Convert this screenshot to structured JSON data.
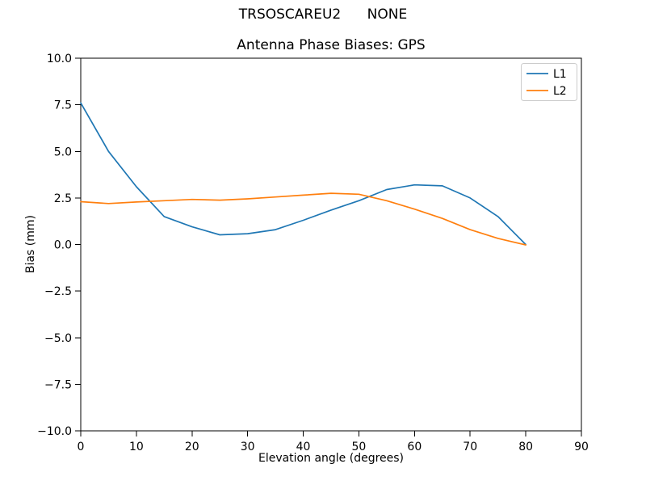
{
  "figure": {
    "suptitle": "TRSOSCAREU2      NONE",
    "background_color": "#ffffff",
    "text_color": "#000000",
    "spine_color": "#000000",
    "legend_border_color": "#cccccc"
  },
  "chart_data": {
    "type": "line",
    "title": "Antenna Phase Biases: GPS",
    "xlabel": "Elevation angle (degrees)",
    "ylabel": "Bias (mm)",
    "xlim": [
      0,
      90
    ],
    "ylim": [
      -10,
      10
    ],
    "xticks": [
      0,
      10,
      20,
      30,
      40,
      50,
      60,
      70,
      80,
      90
    ],
    "yticks": [
      -10,
      -7.5,
      -5,
      -2.5,
      0,
      2.5,
      5,
      7.5,
      10
    ],
    "grid": false,
    "legend_position": "upper right",
    "x": [
      0,
      5,
      10,
      15,
      20,
      25,
      30,
      35,
      40,
      45,
      50,
      55,
      60,
      65,
      70,
      75,
      80
    ],
    "series": [
      {
        "name": "L1",
        "color": "#1f77b4",
        "values": [
          7.6,
          5.0,
          3.1,
          1.5,
          0.95,
          0.52,
          0.58,
          0.8,
          1.3,
          1.85,
          2.35,
          2.95,
          3.2,
          3.15,
          2.5,
          1.5,
          0.0
        ]
      },
      {
        "name": "L2",
        "color": "#ff7f0e",
        "values": [
          2.3,
          2.2,
          2.28,
          2.35,
          2.42,
          2.38,
          2.45,
          2.55,
          2.65,
          2.75,
          2.7,
          2.35,
          1.9,
          1.4,
          0.8,
          0.33,
          -0.02
        ]
      }
    ]
  }
}
